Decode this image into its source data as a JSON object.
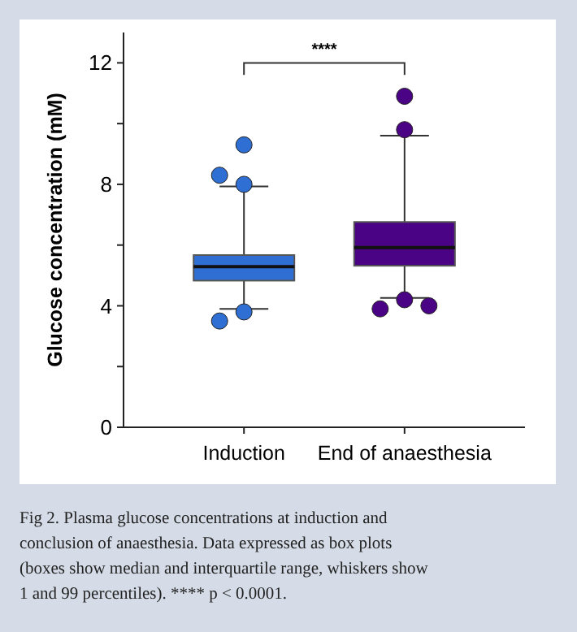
{
  "chart_data": {
    "type": "box",
    "ylabel": "Glucose concentration (mM)",
    "categories": [
      "Induction",
      "End of anaesthesia"
    ],
    "colors": [
      "#2f6fd3",
      "#4b0385"
    ],
    "boxes": [
      {
        "low": 3.9,
        "q1": 4.83,
        "median": 5.29,
        "q3": 5.67,
        "high": 7.93,
        "outliers": [
          9.3,
          8.0,
          8.3,
          3.8,
          3.5
        ]
      },
      {
        "low": 4.26,
        "q1": 5.32,
        "median": 5.92,
        "q3": 6.76,
        "high": 9.6,
        "outliers": [
          10.9,
          9.8,
          4.2,
          3.9,
          4.0
        ]
      }
    ],
    "ylim": [
      0,
      13
    ],
    "yticks": [
      0,
      {
        "value": 2,
        "label": null
      },
      4,
      {
        "value": 6,
        "label": null
      },
      8,
      {
        "value": 10,
        "label": null
      },
      12
    ],
    "grid": false,
    "annotations": [
      "****",
      "Fig 2. Plasma glucose concentrations at induction and conclusion of anaesthesia. Data expressed as box plots (boxes show median and interquartile range, whiskers show 1 and 99 percentiles). **** p < 0.0001."
    ]
  }
}
